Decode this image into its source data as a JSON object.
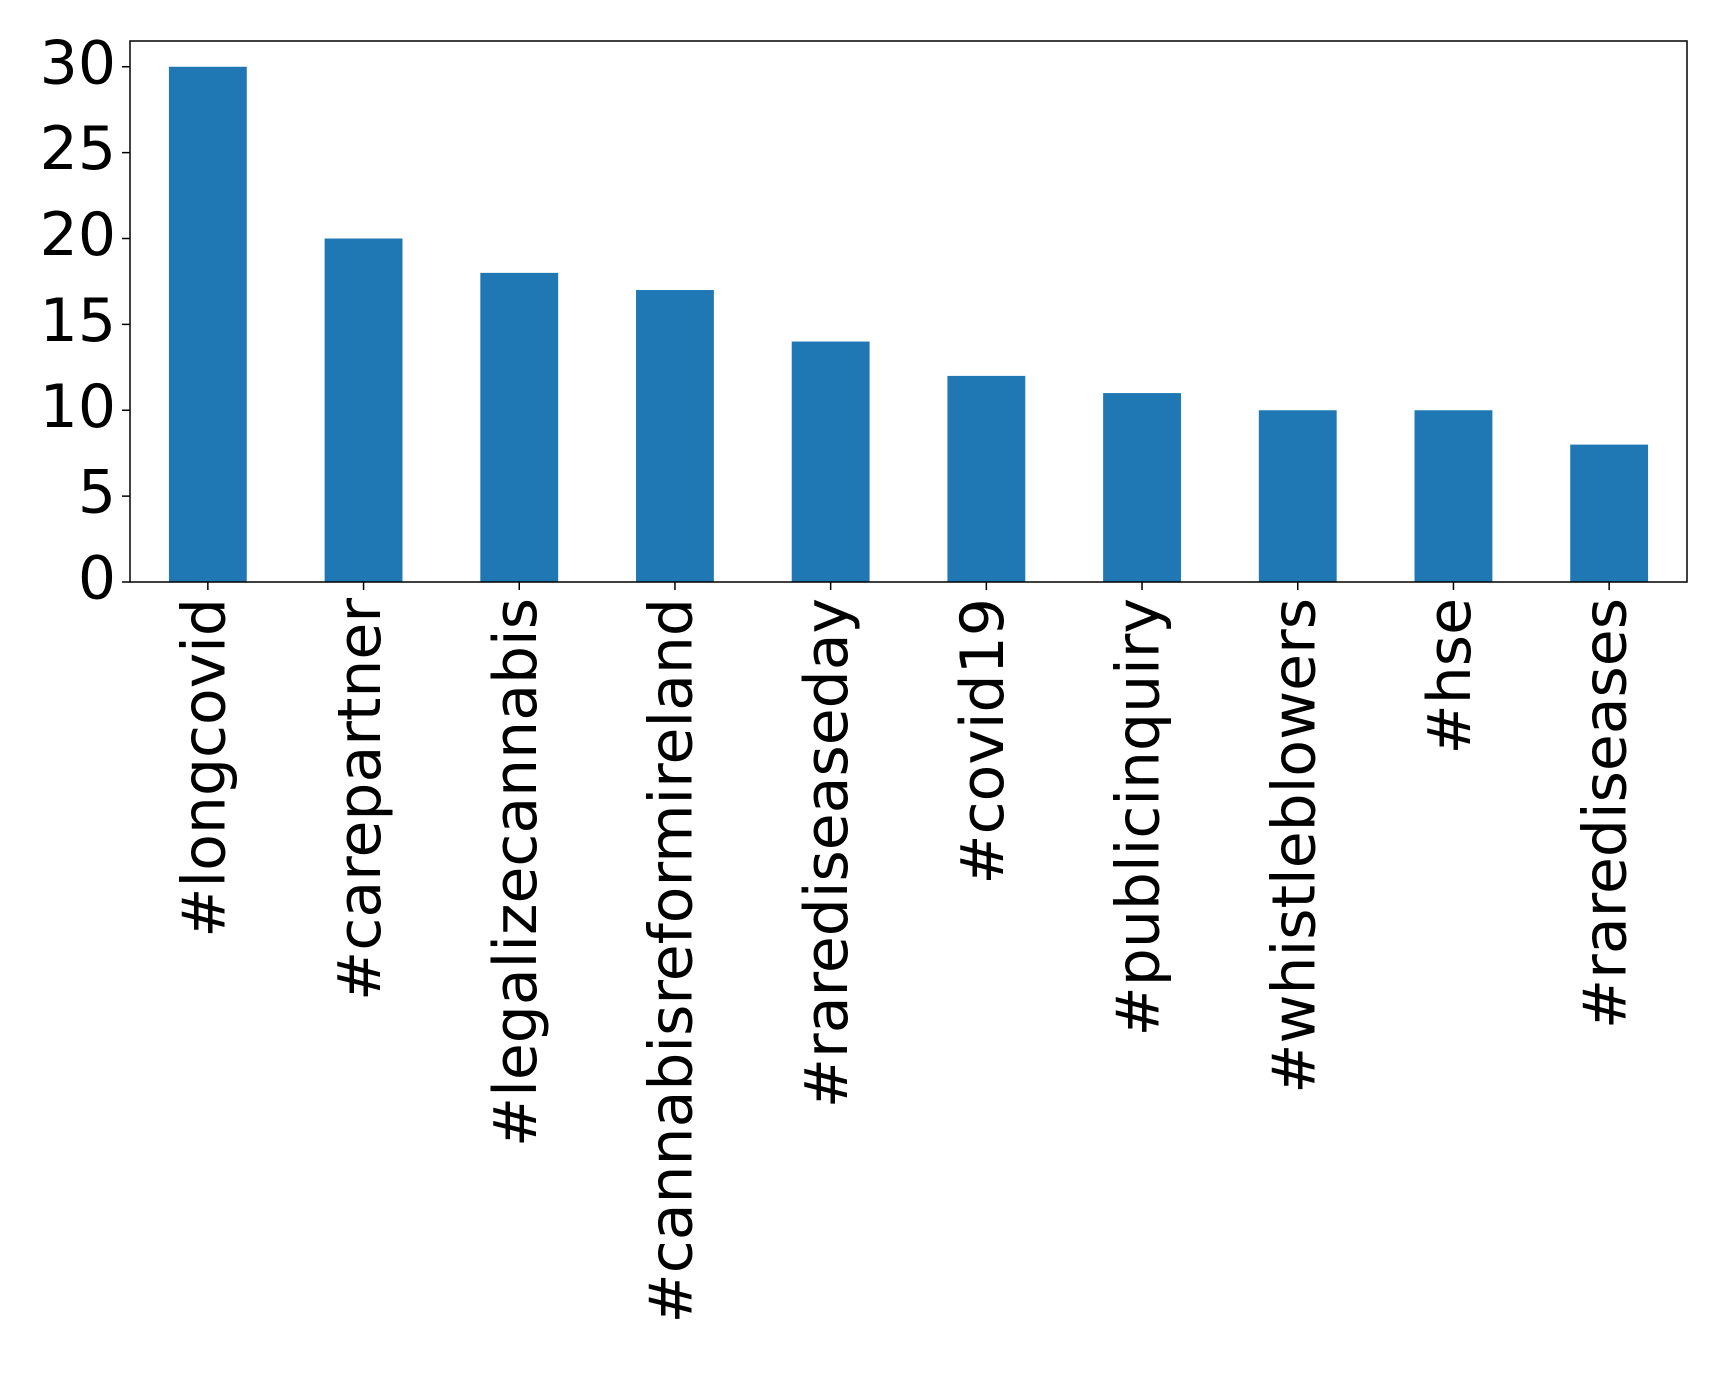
{
  "chart_data": {
    "type": "bar",
    "categories": [
      "#longcovid",
      "#carepartner",
      "#legalizecannabis",
      "#cannabisreformireland",
      "#rarediseaseday",
      "#covid19",
      "#publicinquiry",
      "#whistleblowers",
      "#hse",
      "#rarediseases"
    ],
    "values": [
      30,
      20,
      18,
      17,
      14,
      12,
      11,
      10,
      10,
      8
    ],
    "color": "#1f77b4",
    "ylim": [
      0,
      31.5
    ],
    "yticks": [
      0,
      5,
      10,
      15,
      20,
      25,
      30
    ],
    "grid": false
  }
}
